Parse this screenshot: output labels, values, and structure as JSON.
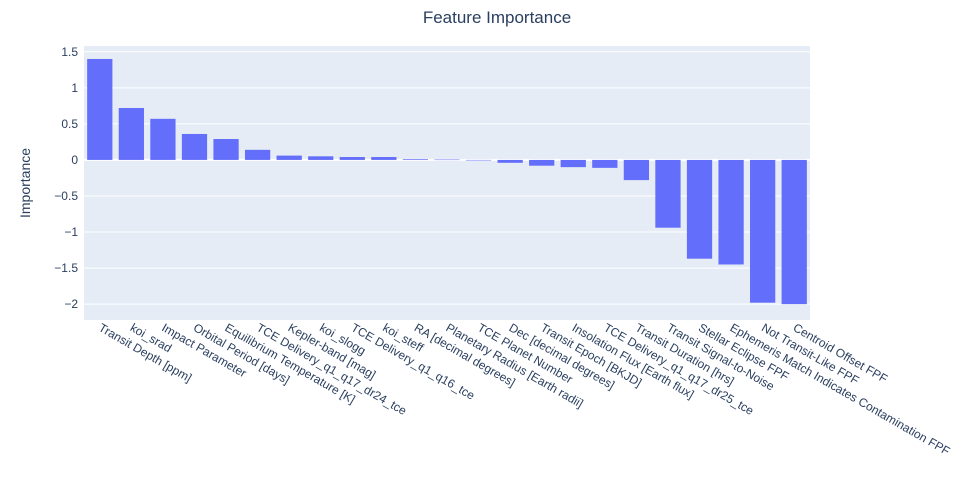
{
  "chart_data": {
    "type": "bar",
    "title": "Feature Importance",
    "xlabel": "",
    "ylabel": "Importance",
    "ylim": [
      -2.22,
      1.58
    ],
    "yticks": [
      1.5,
      1,
      0.5,
      0,
      -0.5,
      -1,
      -1.5,
      -2
    ],
    "ytick_labels": [
      "1.5",
      "1",
      "0.5",
      "0",
      "−0.5",
      "−1",
      "−1.5",
      "−2"
    ],
    "grid": true,
    "bar_color": "#636efa",
    "plot_bg": "#e5ecf6",
    "text_color": "#2a3f5f",
    "categories": [
      "Transit Depth [ppm]",
      "koi_srad",
      "Impact Parameter",
      "Orbital Period [days]",
      "Equilibrium Temperature [K]",
      "TCE Delivery_q1_q17_dr24_tce",
      "Kepler-band [mag]",
      "koi_slogg",
      "TCE Delivery_q1_q16_tce",
      "koi_steff",
      "RA [decimal degrees]",
      "Planetary Radius [Earth radii]",
      "TCE Planet Number",
      "Dec [decimal degrees]",
      "Transit Epoch [BKJD]",
      "Insolation Flux [Earth flux]",
      "TCE Delivery_q1_q17_dr25_tce",
      "Transit Duration [hrs]",
      "Transit Signal-to-Noise",
      "Stellar Eclipse FPF",
      "Ephemeris Match Indicates Contamination FPF",
      "Not Transit-Like FPF",
      "Centroid Offset FPF"
    ],
    "values": [
      1.4,
      0.72,
      0.57,
      0.36,
      0.29,
      0.14,
      0.06,
      0.05,
      0.04,
      0.04,
      0.01,
      0.005,
      -0.005,
      -0.04,
      -0.08,
      -0.1,
      -0.11,
      -0.28,
      -0.94,
      -1.37,
      -1.45,
      -1.98,
      -2.0
    ]
  }
}
